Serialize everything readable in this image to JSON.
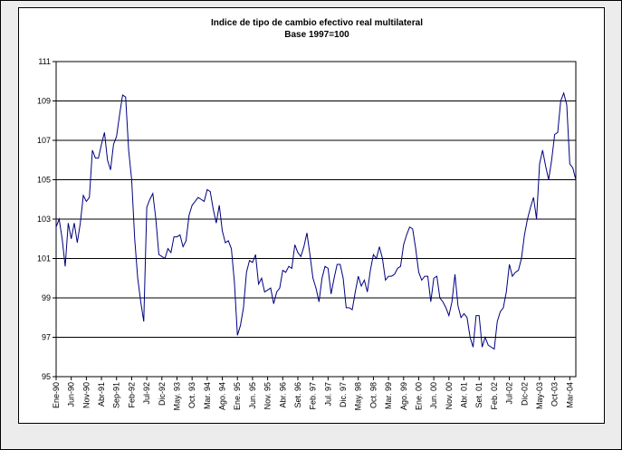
{
  "chart_data": {
    "type": "line",
    "title": "Indice de tipo de cambio efectivo real multilateral",
    "subtitle": "Base 1997=100",
    "color": "#000080",
    "grid": true,
    "ylim": [
      95,
      111
    ],
    "yticks": [
      95,
      97,
      99,
      101,
      103,
      105,
      107,
      109,
      111
    ],
    "categories": [
      "Ene-90",
      null,
      null,
      null,
      null,
      "Jun-90",
      null,
      null,
      null,
      null,
      "Nov-90",
      null,
      null,
      null,
      null,
      "Abr-91",
      null,
      null,
      null,
      null,
      "Sep-91",
      null,
      null,
      null,
      null,
      "Feb-92",
      null,
      null,
      null,
      null,
      "Jul-92",
      null,
      null,
      null,
      null,
      "Dic-92",
      null,
      null,
      null,
      null,
      "May. 93",
      null,
      null,
      null,
      null,
      "Oct. 93",
      null,
      null,
      null,
      null,
      "Mar. 94",
      null,
      null,
      null,
      null,
      "Ago. 94",
      null,
      null,
      null,
      null,
      "Ene. 95",
      null,
      null,
      null,
      null,
      "Jun. 95",
      null,
      null,
      null,
      null,
      "Nov. 95",
      null,
      null,
      null,
      null,
      "Abr. 96",
      null,
      null,
      null,
      null,
      "Set. 96",
      null,
      null,
      null,
      null,
      "Feb. 97",
      null,
      null,
      null,
      null,
      "Jul. 97",
      null,
      null,
      null,
      null,
      "Dic. 97",
      null,
      null,
      null,
      null,
      "May. 98",
      null,
      null,
      null,
      null,
      "Oct. 98",
      null,
      null,
      null,
      null,
      "Mar. 99",
      null,
      null,
      null,
      null,
      "Ago. 99",
      null,
      null,
      null,
      null,
      "Ene. 00",
      null,
      null,
      null,
      null,
      "Jun. 00",
      null,
      null,
      null,
      null,
      "Nov. 00",
      null,
      null,
      null,
      null,
      "Abr. 01",
      null,
      null,
      null,
      null,
      "Set. 01",
      null,
      null,
      null,
      null,
      "Feb. 02",
      null,
      null,
      null,
      null,
      "Jul-02",
      null,
      null,
      null,
      null,
      "Dic-02",
      null,
      null,
      null,
      null,
      "May-03",
      null,
      null,
      null,
      null,
      "Oct-03",
      null,
      null,
      null,
      null,
      "Mar-04",
      null,
      null
    ],
    "values": [
      102.6,
      103.0,
      102.0,
      100.6,
      102.8,
      102.0,
      102.8,
      101.8,
      102.8,
      104.2,
      103.9,
      104.1,
      106.5,
      106.1,
      106.1,
      106.8,
      107.4,
      106.0,
      105.5,
      106.8,
      107.2,
      108.3,
      109.3,
      109.2,
      106.5,
      105.0,
      102.0,
      100.0,
      98.8,
      97.8,
      103.6,
      104.0,
      104.3,
      103.0,
      101.2,
      101.1,
      101.0,
      101.5,
      101.3,
      102.1,
      102.1,
      102.2,
      101.6,
      101.9,
      103.2,
      103.7,
      103.9,
      104.1,
      104.0,
      103.9,
      104.5,
      104.4,
      103.5,
      102.8,
      103.7,
      102.4,
      101.8,
      101.9,
      101.5,
      99.8,
      97.1,
      97.6,
      98.5,
      100.3,
      100.9,
      100.8,
      101.2,
      99.7,
      100.0,
      99.3,
      99.4,
      99.5,
      98.7,
      99.3,
      99.5,
      100.4,
      100.3,
      100.6,
      100.5,
      101.7,
      101.3,
      101.1,
      101.6,
      102.3,
      101.2,
      100.0,
      99.5,
      98.8,
      100.0,
      100.6,
      100.5,
      99.2,
      100.0,
      100.7,
      100.7,
      100.0,
      98.5,
      98.5,
      98.4,
      99.3,
      100.1,
      99.6,
      99.9,
      99.3,
      100.4,
      101.2,
      101.0,
      101.6,
      101.0,
      99.9,
      100.1,
      100.1,
      100.2,
      100.5,
      100.6,
      101.7,
      102.2,
      102.6,
      102.5,
      101.5,
      100.3,
      99.9,
      100.1,
      100.1,
      98.8,
      100.0,
      100.1,
      99.0,
      98.8,
      98.5,
      98.1,
      98.8,
      100.2,
      98.6,
      98.0,
      98.2,
      98.0,
      97.0,
      96.5,
      98.1,
      98.1,
      96.5,
      97.0,
      96.6,
      96.5,
      96.4,
      97.8,
      98.3,
      98.5,
      99.3,
      100.7,
      100.1,
      100.3,
      100.4,
      101.0,
      102.2,
      103.0,
      103.6,
      104.1,
      103.0,
      105.8,
      106.5,
      105.7,
      105.0,
      106.0,
      107.3,
      107.4,
      109.0,
      109.4,
      108.8,
      105.8,
      105.6,
      105.0
    ]
  }
}
